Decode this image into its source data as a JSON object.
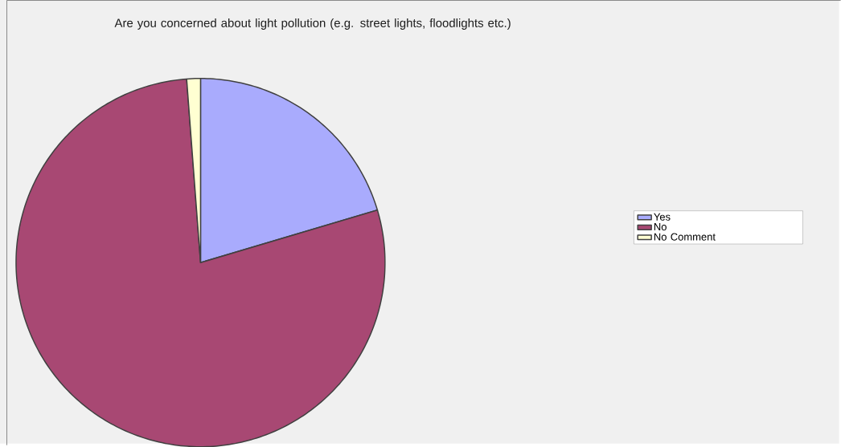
{
  "chart_data": {
    "type": "pie",
    "title": "Are you concerned about light pollution (e.g. street lights, floodlights etc.)",
    "categories": [
      "Yes",
      "No",
      "No Comment"
    ],
    "values": [
      20.4,
      78.4,
      1.2
    ],
    "colors": [
      "#a9abfd",
      "#a84873",
      "#ffffd2"
    ],
    "legend": "right"
  }
}
